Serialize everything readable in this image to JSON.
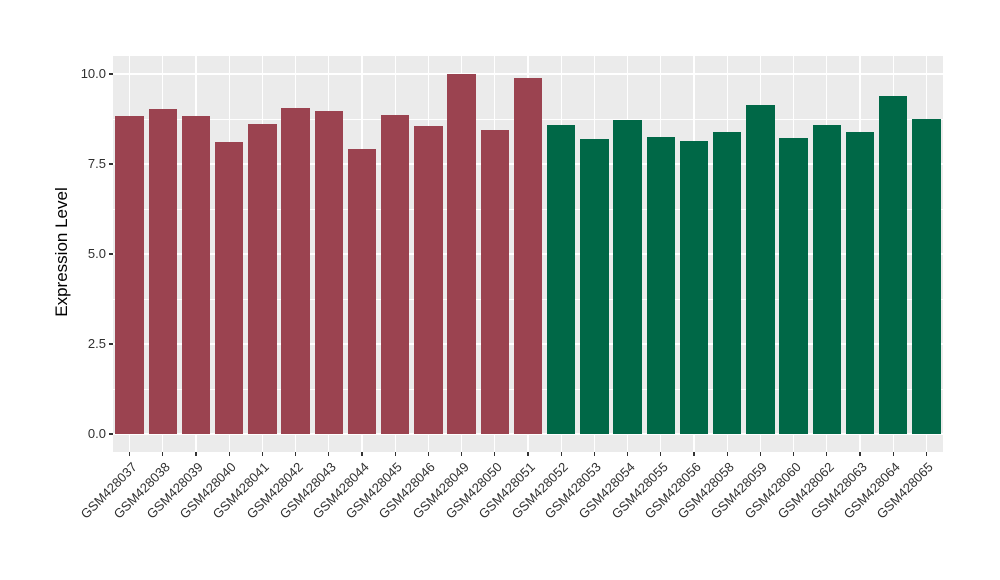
{
  "figure": {
    "background": "#FFFFFF",
    "panel_background": "#EBEBEB",
    "grid_color": "#FFFFFF",
    "tick_color": "#333333",
    "axis_text_color": "#303030"
  },
  "chart_data": {
    "type": "bar",
    "title": "",
    "xlabel": "",
    "ylabel": "Expression Level",
    "ylim": [
      0,
      10.5
    ],
    "yticks": [
      0,
      2.5,
      5,
      7.5,
      10
    ],
    "ytick_labels": [
      "0.0",
      "2.5",
      "5.0",
      "7.5",
      "10.0"
    ],
    "grid": "major-and-minor",
    "legend": "none",
    "categories": [
      "GSM428037",
      "GSM428038",
      "GSM428039",
      "GSM428040",
      "GSM428041",
      "GSM428042",
      "GSM428043",
      "GSM428044",
      "GSM428045",
      "GSM428046",
      "GSM428049",
      "GSM428050",
      "GSM428051",
      "GSM428052",
      "GSM428053",
      "GSM428054",
      "GSM428055",
      "GSM428056",
      "GSM428058",
      "GSM428059",
      "GSM428060",
      "GSM428062",
      "GSM428063",
      "GSM428064",
      "GSM428065"
    ],
    "values": [
      8.82,
      9.03,
      8.84,
      8.1,
      8.62,
      9.06,
      8.97,
      7.92,
      8.85,
      8.56,
      9.99,
      8.45,
      9.88,
      8.59,
      8.2,
      8.71,
      8.24,
      8.13,
      8.4,
      9.14,
      8.21,
      8.57,
      8.4,
      9.38,
      8.75
    ],
    "palette": [
      "#9B4350",
      "#006847"
    ],
    "bar_color_index": [
      0,
      0,
      0,
      0,
      0,
      0,
      0,
      0,
      0,
      0,
      0,
      0,
      0,
      1,
      1,
      1,
      1,
      1,
      1,
      1,
      1,
      1,
      1,
      1,
      1
    ]
  }
}
